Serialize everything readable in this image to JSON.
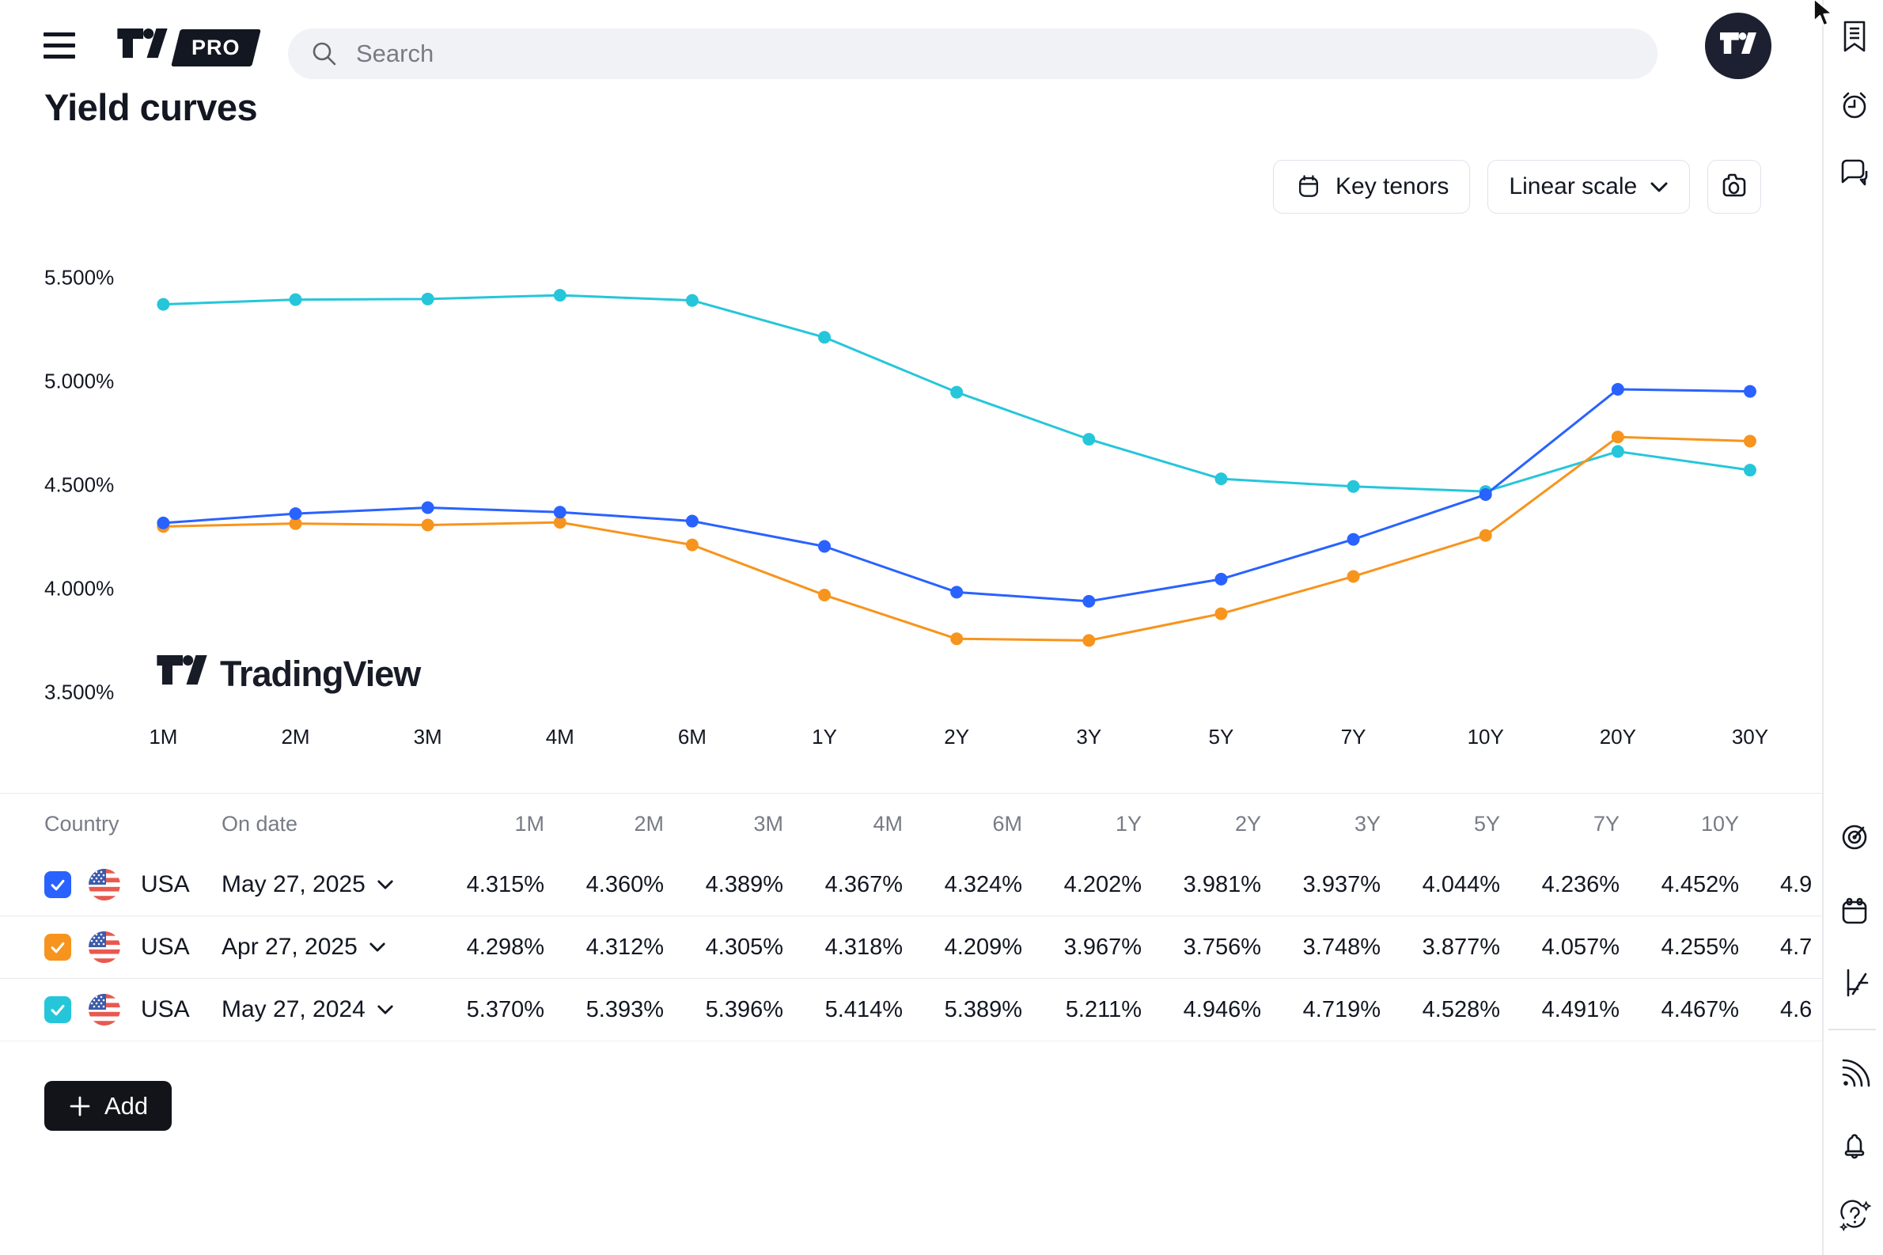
{
  "header": {
    "logo": "TradingView",
    "pro_badge": "PRO",
    "search": {
      "placeholder": "Search",
      "icon": "search-icon"
    },
    "menu_icon": "hamburger-menu-icon",
    "avatar_icon": "tradingview-avatar"
  },
  "page_title": "Yield curves",
  "toolbar": {
    "key_tenors_label": "Key tenors",
    "key_tenors_icon": "calendar-icon",
    "scale_label": "Linear scale",
    "scale_icon": "chevron-down-icon",
    "snapshot_icon": "camera-icon"
  },
  "watermark_label": "TradingView",
  "chart_data": {
    "type": "line",
    "title": "Yield curves",
    "categories": [
      "1M",
      "2M",
      "3M",
      "4M",
      "6M",
      "1Y",
      "2Y",
      "3Y",
      "5Y",
      "7Y",
      "10Y",
      "20Y",
      "30Y"
    ],
    "ylim": [
      3.5,
      5.5
    ],
    "yticks": [
      5.5,
      5.0,
      4.5,
      4.0,
      3.5
    ],
    "ytick_labels": [
      "5.500%",
      "5.000%",
      "4.500%",
      "4.000%",
      "3.500%"
    ],
    "grid": false,
    "legend": false,
    "series": [
      {
        "name": "USA May 27, 2025",
        "color": "#2962FF",
        "values": [
          4.315,
          4.36,
          4.389,
          4.367,
          4.324,
          4.202,
          3.981,
          3.937,
          4.044,
          4.236,
          4.452,
          4.96,
          4.95
        ]
      },
      {
        "name": "USA Apr 27, 2025",
        "color": "#F7941D",
        "values": [
          4.298,
          4.312,
          4.305,
          4.318,
          4.209,
          3.967,
          3.756,
          3.748,
          3.877,
          4.057,
          4.255,
          4.73,
          4.71
        ]
      },
      {
        "name": "USA May 27, 2024",
        "color": "#26C6DA",
        "values": [
          5.37,
          5.393,
          5.396,
          5.414,
          5.389,
          5.211,
          4.946,
          4.719,
          4.528,
          4.491,
          4.467,
          4.66,
          4.57
        ]
      }
    ]
  },
  "table": {
    "columns": [
      "Country",
      "On date",
      "1M",
      "2M",
      "3M",
      "4M",
      "6M",
      "1Y",
      "2Y",
      "3Y",
      "5Y",
      "7Y",
      "10Y"
    ],
    "rows": [
      {
        "checked": true,
        "accent": "#2962FF",
        "flag": "usa-flag-icon",
        "country": "USA",
        "date": "May 27, 2025",
        "values": [
          "4.315%",
          "4.360%",
          "4.389%",
          "4.367%",
          "4.324%",
          "4.202%",
          "3.981%",
          "3.937%",
          "4.044%",
          "4.236%",
          "4.452%"
        ],
        "clipped_value": "4.9"
      },
      {
        "checked": true,
        "accent": "#F7941D",
        "flag": "usa-flag-icon",
        "country": "USA",
        "date": "Apr 27, 2025",
        "values": [
          "4.298%",
          "4.312%",
          "4.305%",
          "4.318%",
          "4.209%",
          "3.967%",
          "3.756%",
          "3.748%",
          "3.877%",
          "4.057%",
          "4.255%"
        ],
        "clipped_value": "4.7"
      },
      {
        "checked": true,
        "accent": "#26C6DA",
        "flag": "usa-flag-icon",
        "country": "USA",
        "date": "May 27, 2024",
        "values": [
          "5.370%",
          "5.393%",
          "5.396%",
          "5.414%",
          "5.389%",
          "5.211%",
          "4.946%",
          "4.719%",
          "4.528%",
          "4.491%",
          "4.467%"
        ],
        "clipped_value": "4.6"
      }
    ],
    "add_button_label": "Add"
  },
  "sidebar": {
    "icons": [
      "watchlist-icon",
      "alerts-clock-icon",
      "chat-icon",
      "screener-radar-icon",
      "calendar-icon",
      "yield-curves-icon",
      "news-feed-icon",
      "notifications-bell-icon",
      "help-icon"
    ]
  },
  "colors": {
    "accent_blue": "#2962FF",
    "accent_orange": "#F7941D",
    "accent_cyan": "#26C6DA",
    "text": "#131722",
    "muted": "#787B86",
    "border": "#E0E3EB"
  }
}
